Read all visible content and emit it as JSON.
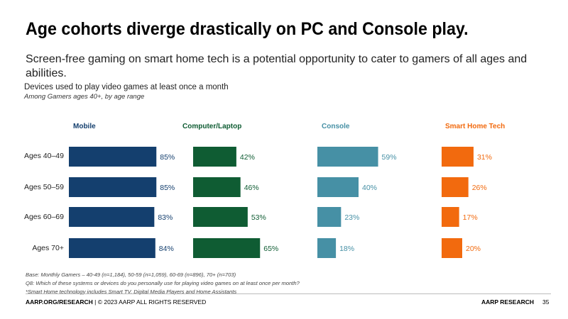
{
  "slide": {
    "title": "Age cohorts diverge drastically on PC and Console play.",
    "subtitle": "Screen-free gaming on smart home tech is a potential opportunity to cater to gamers of all ages and abilities.",
    "chart_heading": "Devices used to play video games at least once a month",
    "chart_subheading": "Among Gamers ages 40+, by age range"
  },
  "footnotes": [
    "Base: Monthly Gamers – 40-49 (n=1,184), 50-59 (n=1,059), 60-69 (n=896), 70+ (n=703)",
    "Q8: Which of these systems or devices do you personally use for playing video games on at least once per month?",
    "*Smart Home technology includes Smart TV, Digital Media Players and Home Assistants"
  ],
  "footer": {
    "site": "AARP.ORG/RESEARCH",
    "copyright": " | © 2023 AARP ALL RIGHTS RESERVED",
    "brand": "AARP RESEARCH",
    "page_number": "35"
  },
  "chart_data": {
    "type": "bar",
    "orientation": "horizontal",
    "categories": [
      "Ages 40–49",
      "Ages 50–59",
      "Ages 60–69",
      "Ages 70+"
    ],
    "series": [
      {
        "name": "Mobile",
        "color": "#143F6E",
        "values": [
          85,
          85,
          83,
          84
        ],
        "labels": [
          "85%",
          "85%",
          "83%",
          "84%"
        ]
      },
      {
        "name": "Computer/Laptop",
        "color": "#0F5C33",
        "values": [
          42,
          46,
          53,
          65
        ],
        "labels": [
          "42%",
          "46%",
          "53%",
          "65%"
        ]
      },
      {
        "name": "Console",
        "color": "#4690A5",
        "values": [
          59,
          40,
          23,
          18
        ],
        "labels": [
          "59%",
          "40%",
          "23%",
          "18%"
        ]
      },
      {
        "name": "Smart Home Tech",
        "color": "#F26A0E",
        "values": [
          31,
          26,
          17,
          20
        ],
        "labels": [
          "31%",
          "26%",
          "17%",
          "20%"
        ]
      }
    ],
    "value_unit": "%",
    "grid": false,
    "legend": "column headers above each panel"
  }
}
